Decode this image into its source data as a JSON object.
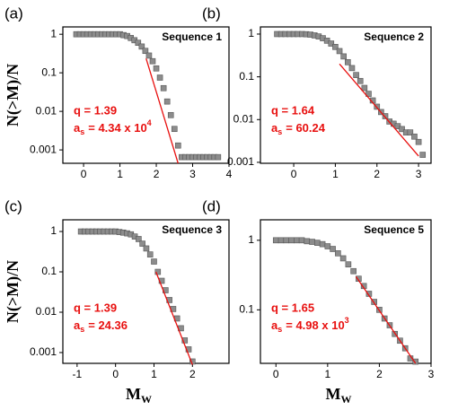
{
  "chart_data": [
    {
      "type": "scatter",
      "panel": "(a)",
      "title": "Sequence 1",
      "ylabel": "N(>M)/N",
      "yscale": "log",
      "xlim": [
        -0.57,
        4
      ],
      "xticks": [
        0,
        1,
        2,
        3,
        4
      ],
      "ylim": [
        0.00045,
        1.55
      ],
      "yticks": [
        1,
        0.1,
        0.01,
        0.001
      ],
      "annotation": {
        "q": "q = 1.39",
        "a": "a",
        "a_sub": "s",
        "a_value": "= 4.34 x 10",
        "a_sup": "4"
      },
      "series": [
        {
          "mark": "square",
          "color": "#8c8c8c",
          "x": [
            -0.2,
            -0.1,
            0,
            0.1,
            0.2,
            0.3,
            0.4,
            0.5,
            0.6,
            0.7,
            0.8,
            0.9,
            1.0,
            1.1,
            1.2,
            1.3,
            1.4,
            1.5,
            1.6,
            1.7,
            1.8,
            1.9,
            2.0,
            2.1,
            2.2,
            2.3,
            2.4,
            2.5,
            2.6,
            2.7,
            2.8,
            2.9,
            3.0,
            3.1,
            3.2,
            3.3,
            3.4,
            3.5,
            3.6,
            3.7
          ],
          "values": [
            1,
            1,
            1,
            1,
            1,
            1,
            1,
            1,
            1,
            1,
            1,
            1,
            1,
            0.95,
            0.9,
            0.8,
            0.7,
            0.6,
            0.48,
            0.37,
            0.28,
            0.2,
            0.13,
            0.075,
            0.04,
            0.018,
            0.008,
            0.0035,
            0.0013,
            0.00065,
            0.00065,
            0.00065,
            0.00065,
            0.00065,
            0.00065,
            0.00065,
            0.00065,
            0.00065,
            0.00065,
            0.00065
          ]
        },
        {
          "mark": "line",
          "color": "#e8100f",
          "x": [
            1.72,
            2.6
          ],
          "values": [
            0.235,
            0.00045
          ]
        }
      ]
    },
    {
      "type": "scatter",
      "panel": "(b)",
      "title": "Sequence 2",
      "yscale": "log",
      "xlim": [
        -0.8,
        3.3
      ],
      "xticks": [
        0,
        1,
        2,
        3
      ],
      "ylim": [
        0.00095,
        1.47
      ],
      "yticks": [
        1,
        0.1,
        0.01,
        0.001
      ],
      "annotation": {
        "q": "q = 1.64",
        "a": "a",
        "a_sub": "s",
        "a_value": "= 60.24"
      },
      "series": [
        {
          "mark": "square",
          "color": "#8c8c8c",
          "x": [
            -0.4,
            -0.3,
            -0.2,
            -0.1,
            0,
            0.1,
            0.2,
            0.3,
            0.4,
            0.5,
            0.6,
            0.7,
            0.8,
            0.9,
            1.0,
            1.1,
            1.2,
            1.3,
            1.4,
            1.5,
            1.6,
            1.7,
            1.8,
            1.9,
            2.0,
            2.1,
            2.2,
            2.3,
            2.4,
            2.5,
            2.6,
            2.7,
            2.8,
            2.9,
            3.0,
            3.1
          ],
          "values": [
            1,
            1,
            1,
            1,
            1,
            1,
            1,
            0.99,
            0.97,
            0.93,
            0.88,
            0.8,
            0.7,
            0.6,
            0.5,
            0.4,
            0.3,
            0.22,
            0.16,
            0.11,
            0.08,
            0.055,
            0.04,
            0.028,
            0.02,
            0.015,
            0.012,
            0.009,
            0.008,
            0.007,
            0.006,
            0.005,
            0.005,
            0.004,
            0.003,
            0.0015
          ]
        },
        {
          "mark": "line",
          "color": "#e8100f",
          "x": [
            1.1,
            3.0
          ],
          "values": [
            0.2,
            0.0014
          ]
        }
      ]
    },
    {
      "type": "scatter",
      "panel": "(c)",
      "title": "Sequence 3",
      "ylabel": "N(>M)/N",
      "xlabel": "M",
      "xlabel_sub": "W",
      "yscale": "log",
      "xlim": [
        -1.37,
        2.95
      ],
      "xticks": [
        -1,
        0,
        1,
        2
      ],
      "ylim": [
        0.00054,
        1.95
      ],
      "yticks": [
        1,
        0.1,
        0.01,
        0.001
      ],
      "annotation": {
        "q": "q = 1.39",
        "a": "a",
        "a_sub": "s",
        "a_value": "= 24.36"
      },
      "series": [
        {
          "mark": "square",
          "color": "#8c8c8c",
          "x": [
            -0.9,
            -0.8,
            -0.7,
            -0.6,
            -0.5,
            -0.4,
            -0.3,
            -0.2,
            -0.1,
            0,
            0.1,
            0.2,
            0.3,
            0.4,
            0.5,
            0.6,
            0.7,
            0.8,
            0.9,
            1.0,
            1.1,
            1.2,
            1.3,
            1.4,
            1.5,
            1.6,
            1.7,
            1.8,
            1.9,
            2.0
          ],
          "values": [
            1,
            1,
            1,
            1,
            1,
            1,
            1,
            1,
            1,
            1,
            0.97,
            0.94,
            0.9,
            0.85,
            0.75,
            0.65,
            0.5,
            0.38,
            0.27,
            0.18,
            0.1,
            0.06,
            0.035,
            0.02,
            0.012,
            0.007,
            0.004,
            0.002,
            0.0012,
            0.0006
          ]
        },
        {
          "mark": "line",
          "color": "#e8100f",
          "x": [
            1.05,
            2.0
          ],
          "values": [
            0.1,
            0.0005
          ]
        }
      ]
    },
    {
      "type": "scatter",
      "panel": "(d)",
      "title": "Sequence 5",
      "xlabel": "M",
      "xlabel_sub": "W",
      "yscale": "log",
      "xlim": [
        -0.3,
        3.0
      ],
      "xticks": [
        0,
        1,
        2,
        3
      ],
      "ylim": [
        0.017,
        1.97
      ],
      "yticks": [
        1,
        0.1
      ],
      "annotation": {
        "q": "q = 1.65",
        "a": "a",
        "a_sub": "s",
        "a_value": "= 4.98 x 10",
        "a_sup": "3"
      },
      "series": [
        {
          "mark": "square",
          "color": "#8c8c8c",
          "x": [
            0,
            0.1,
            0.2,
            0.3,
            0.4,
            0.5,
            0.6,
            0.7,
            0.8,
            0.9,
            1.0,
            1.1,
            1.2,
            1.3,
            1.4,
            1.5,
            1.6,
            1.7,
            1.8,
            1.9,
            2.0,
            2.1,
            2.2,
            2.3,
            2.4,
            2.5,
            2.6,
            2.7
          ],
          "values": [
            1,
            1,
            1,
            1,
            1,
            1,
            0.97,
            0.95,
            0.92,
            0.88,
            0.82,
            0.75,
            0.65,
            0.55,
            0.45,
            0.36,
            0.28,
            0.22,
            0.17,
            0.13,
            0.1,
            0.075,
            0.06,
            0.045,
            0.036,
            0.028,
            0.02,
            0.018
          ]
        },
        {
          "mark": "line",
          "color": "#e8100f",
          "x": [
            1.55,
            2.7
          ],
          "values": [
            0.3,
            0.017
          ]
        }
      ]
    }
  ]
}
